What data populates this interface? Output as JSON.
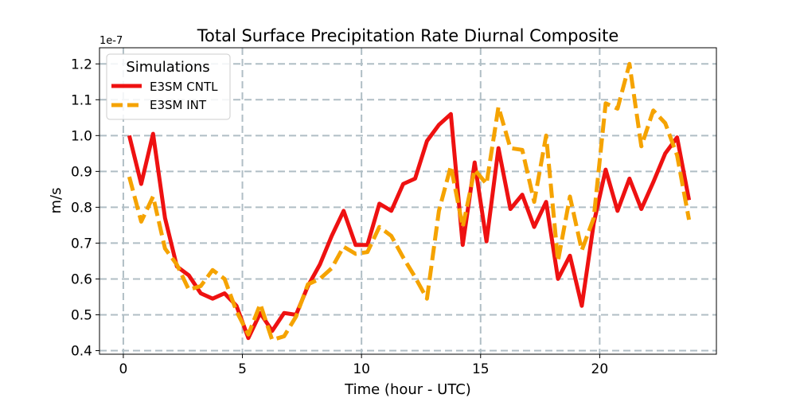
{
  "chart_data": {
    "type": "line",
    "title": "Total Surface Precipitation Rate Diurnal Composite",
    "xlabel": "Time (hour - UTC)",
    "ylabel": "m/s",
    "y_offset_label": "1e-7",
    "xlim": [
      -1,
      24.9
    ],
    "ylim": [
      0.39,
      1.245
    ],
    "x_ticks": [
      0,
      5,
      10,
      15,
      20
    ],
    "x_tick_labels": [
      "0",
      "5",
      "10",
      "15",
      "20"
    ],
    "y_ticks": [
      0.4,
      0.5,
      0.6,
      0.7,
      0.8,
      0.9,
      1.0,
      1.1,
      1.2
    ],
    "y_tick_labels": [
      "0.4",
      "0.5",
      "0.6",
      "0.7",
      "0.8",
      "0.9",
      "1.0",
      "1.1",
      "1.2"
    ],
    "grid": true,
    "legend": {
      "title": "Simulations",
      "position": "top-left"
    },
    "x": [
      0.25,
      0.75,
      1.25,
      1.75,
      2.25,
      2.75,
      3.25,
      3.75,
      4.25,
      4.75,
      5.25,
      5.75,
      6.25,
      6.75,
      7.25,
      7.75,
      8.25,
      8.75,
      9.25,
      9.75,
      10.25,
      10.75,
      11.25,
      11.75,
      12.25,
      12.75,
      13.25,
      13.75,
      14.25,
      14.75,
      15.25,
      15.75,
      16.25,
      16.75,
      17.25,
      17.75,
      18.25,
      18.75,
      19.25,
      19.75,
      20.25,
      20.75,
      21.25,
      21.75,
      22.25,
      22.75,
      23.25,
      23.75
    ],
    "series": [
      {
        "name": "E3SM CNTL",
        "color": "#ee1111",
        "style": "solid",
        "values": [
          1.0,
          0.865,
          1.005,
          0.77,
          0.635,
          0.61,
          0.56,
          0.545,
          0.56,
          0.525,
          0.435,
          0.505,
          0.455,
          0.505,
          0.5,
          0.58,
          0.64,
          0.72,
          0.79,
          0.695,
          0.695,
          0.81,
          0.79,
          0.865,
          0.88,
          0.985,
          1.03,
          1.06,
          0.695,
          0.925,
          0.705,
          0.965,
          0.795,
          0.835,
          0.745,
          0.815,
          0.6,
          0.665,
          0.525,
          0.755,
          0.905,
          0.79,
          0.88,
          0.795,
          0.87,
          0.95,
          0.995,
          0.82
        ]
      },
      {
        "name": "E3SM INT",
        "color": "#f5a300",
        "style": "dashed",
        "values": [
          0.885,
          0.76,
          0.83,
          0.685,
          0.64,
          0.57,
          0.58,
          0.625,
          0.6,
          0.51,
          0.445,
          0.53,
          0.43,
          0.44,
          0.495,
          0.585,
          0.6,
          0.63,
          0.69,
          0.67,
          0.675,
          0.745,
          0.72,
          0.66,
          0.605,
          0.545,
          0.79,
          0.915,
          0.745,
          0.905,
          0.865,
          1.08,
          0.965,
          0.96,
          0.815,
          1.0,
          0.65,
          0.83,
          0.68,
          0.77,
          1.09,
          1.075,
          1.2,
          0.97,
          1.07,
          1.035,
          0.945,
          0.765
        ]
      }
    ]
  }
}
